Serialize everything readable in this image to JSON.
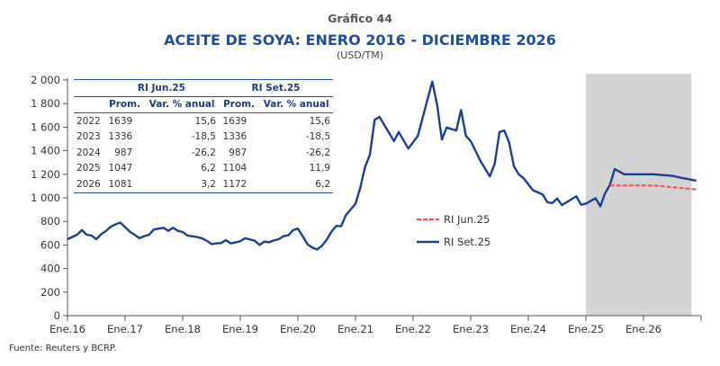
{
  "header": {
    "label": "Gráfico 44",
    "title": "ACEITE DE SOYA: ENERO 2016 - DICIEMBRE 2026",
    "unit": "(USD/TM)"
  },
  "source": "Fuente: Reuters y BCRP.",
  "colors": {
    "set25": "#1b3f91",
    "jun25": "#ff4d4d",
    "shade": "#d3d3d6",
    "title": "#1f4e9c"
  },
  "table": {
    "groups": [
      "RI Jun.25",
      "RI Set.25"
    ],
    "columns": [
      "Prom.",
      "Var. % anual",
      "Prom.",
      "Var. % anual"
    ],
    "rows": [
      [
        "2022",
        "1639",
        "15,6",
        "1639",
        "15,6"
      ],
      [
        "2023",
        "1336",
        "-18,5",
        "1336",
        "-18,5"
      ],
      [
        "2024",
        "987",
        "-26,2",
        "987",
        "-26,2"
      ],
      [
        "2025",
        "1047",
        "6,2",
        "1104",
        "11,9"
      ],
      [
        "2026",
        "1081",
        "3,2",
        "1172",
        "6,2"
      ]
    ]
  },
  "chart_data": {
    "type": "line",
    "title": "ACEITE DE SOYA: ENERO 2016 - DICIEMBRE 2026",
    "ylabel": "(USD/TM)",
    "ylim": [
      0,
      2000
    ],
    "yticks": [
      "0",
      "200",
      "400",
      "600",
      "800",
      "1 000",
      "1 200",
      "1 400",
      "1 600",
      "1 800",
      "2 000"
    ],
    "xlim": [
      "2016-01",
      "2027-01"
    ],
    "xticks": [
      "Ene.16",
      "Ene.17",
      "Ene.18",
      "Ene.19",
      "Ene.20",
      "Ene.21",
      "Ene.22",
      "Ene.23",
      "Ene.24",
      "Ene.25",
      "Ene.26"
    ],
    "shaded_range": [
      "2025-01",
      "2026-11"
    ],
    "grid": false,
    "legend": "center-right",
    "series": [
      {
        "name": "RI Jun.25",
        "style": "dashed",
        "color": "#ff4d4d",
        "points": [
          [
            "2025-06",
            1105
          ],
          [
            "2025-09",
            1105
          ],
          [
            "2026-03",
            1105
          ],
          [
            "2026-07",
            1090
          ],
          [
            "2026-12",
            1072
          ]
        ]
      },
      {
        "name": "RI Set.25",
        "style": "solid",
        "color": "#1b3f91",
        "points": [
          [
            "2016-01",
            649
          ],
          [
            "2016-03",
            687
          ],
          [
            "2016-04",
            726
          ],
          [
            "2016-05",
            687
          ],
          [
            "2016-06",
            680
          ],
          [
            "2016-07",
            649
          ],
          [
            "2016-08",
            690
          ],
          [
            "2016-09",
            718
          ],
          [
            "2016-10",
            754
          ],
          [
            "2016-11",
            775
          ],
          [
            "2016-12",
            790
          ],
          [
            "2017-01",
            751
          ],
          [
            "2017-02",
            713
          ],
          [
            "2017-04",
            657
          ],
          [
            "2017-05",
            675
          ],
          [
            "2017-06",
            687
          ],
          [
            "2017-07",
            731
          ],
          [
            "2017-09",
            746
          ],
          [
            "2017-10",
            720
          ],
          [
            "2017-11",
            746
          ],
          [
            "2017-12",
            720
          ],
          [
            "2018-01",
            710
          ],
          [
            "2018-02",
            680
          ],
          [
            "2018-04",
            667
          ],
          [
            "2018-05",
            657
          ],
          [
            "2018-06",
            636
          ],
          [
            "2018-07",
            608
          ],
          [
            "2018-08",
            613
          ],
          [
            "2018-09",
            616
          ],
          [
            "2018-10",
            641
          ],
          [
            "2018-11",
            613
          ],
          [
            "2019-01",
            631
          ],
          [
            "2019-02",
            657
          ],
          [
            "2019-04",
            636
          ],
          [
            "2019-05",
            600
          ],
          [
            "2019-06",
            628
          ],
          [
            "2019-07",
            623
          ],
          [
            "2019-08",
            638
          ],
          [
            "2019-09",
            649
          ],
          [
            "2019-10",
            675
          ],
          [
            "2019-11",
            682
          ],
          [
            "2019-12",
            726
          ],
          [
            "2020-01",
            739
          ],
          [
            "2020-02",
            675
          ],
          [
            "2020-03",
            605
          ],
          [
            "2020-04",
            577
          ],
          [
            "2020-05",
            562
          ],
          [
            "2020-06",
            592
          ],
          [
            "2020-07",
            644
          ],
          [
            "2020-08",
            713
          ],
          [
            "2020-09",
            762
          ],
          [
            "2020-10",
            759
          ],
          [
            "2020-11",
            853
          ],
          [
            "2021-01",
            950
          ],
          [
            "2021-02",
            1085
          ],
          [
            "2021-03",
            1264
          ],
          [
            "2021-04",
            1367
          ],
          [
            "2021-05",
            1662
          ],
          [
            "2021-06",
            1687
          ],
          [
            "2021-09",
            1482
          ],
          [
            "2021-10",
            1559
          ],
          [
            "2021-12",
            1418
          ],
          [
            "2022-02",
            1526
          ],
          [
            "2022-05",
            1987
          ],
          [
            "2022-06",
            1790
          ],
          [
            "2022-07",
            1495
          ],
          [
            "2022-08",
            1597
          ],
          [
            "2022-10",
            1572
          ],
          [
            "2022-11",
            1746
          ],
          [
            "2022-12",
            1526
          ],
          [
            "2023-01",
            1482
          ],
          [
            "2023-03",
            1315
          ],
          [
            "2023-05",
            1182
          ],
          [
            "2023-06",
            1290
          ],
          [
            "2023-07",
            1559
          ],
          [
            "2023-08",
            1572
          ],
          [
            "2023-09",
            1469
          ],
          [
            "2023-10",
            1269
          ],
          [
            "2023-11",
            1200
          ],
          [
            "2023-12",
            1167
          ],
          [
            "2024-02",
            1064
          ],
          [
            "2024-03",
            1046
          ],
          [
            "2024-04",
            1028
          ],
          [
            "2024-05",
            962
          ],
          [
            "2024-06",
            956
          ],
          [
            "2024-07",
            995
          ],
          [
            "2024-08",
            938
          ],
          [
            "2024-11",
            1013
          ],
          [
            "2024-12",
            941
          ],
          [
            "2025-01",
            951
          ],
          [
            "2025-03",
            997
          ],
          [
            "2025-04",
            928
          ],
          [
            "2025-05",
            1038
          ],
          [
            "2025-06",
            1110
          ],
          [
            "2025-07",
            1244
          ],
          [
            "2025-09",
            1200
          ],
          [
            "2026-03",
            1200
          ],
          [
            "2026-07",
            1187
          ],
          [
            "2026-09",
            1169
          ],
          [
            "2026-12",
            1146
          ]
        ]
      }
    ]
  }
}
